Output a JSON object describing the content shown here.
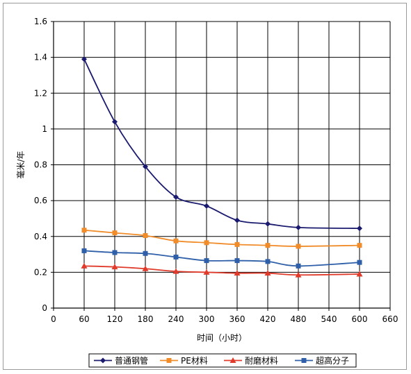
{
  "chart_data": {
    "type": "line",
    "title": "",
    "xlabel": "时间（小时）",
    "ylabel": "毫米/年",
    "xlim": [
      0,
      660
    ],
    "ylim": [
      0,
      1.6
    ],
    "xticks": [
      0,
      60,
      120,
      180,
      240,
      300,
      360,
      420,
      480,
      540,
      600,
      660
    ],
    "xtick_labels": [
      "0",
      "60",
      "120",
      "180",
      "240",
      "300",
      "360",
      "420",
      "480",
      "540",
      "600",
      "660"
    ],
    "yticks": [
      0,
      0.2,
      0.4,
      0.6,
      0.8,
      1.0,
      1.2,
      1.4,
      1.6
    ],
    "ytick_labels": [
      "0",
      "0.2",
      "0.4",
      "0.6",
      "0.8",
      "1",
      "1.2",
      "1.4",
      "1.6"
    ],
    "grid": true,
    "legend_position": "bottom",
    "x": [
      60,
      120,
      180,
      240,
      300,
      360,
      420,
      480,
      600
    ],
    "series": [
      {
        "name": "普通钢管",
        "color": "#1a1a6e",
        "marker": "diamond",
        "values": [
          1.39,
          1.04,
          0.79,
          0.62,
          0.57,
          0.49,
          0.47,
          0.45,
          0.445
        ]
      },
      {
        "name": "PE材料",
        "color": "#f08c2a",
        "marker": "square",
        "values": [
          0.435,
          0.42,
          0.405,
          0.375,
          0.365,
          0.355,
          0.35,
          0.345,
          0.35
        ]
      },
      {
        "name": "耐磨材料",
        "color": "#e03a2a",
        "marker": "triangle",
        "values": [
          0.235,
          0.23,
          0.22,
          0.205,
          0.2,
          0.195,
          0.195,
          0.185,
          0.19
        ]
      },
      {
        "name": "超高分子",
        "color": "#2e5fa8",
        "marker": "square",
        "values": [
          0.32,
          0.31,
          0.305,
          0.285,
          0.265,
          0.265,
          0.26,
          0.235,
          0.255
        ]
      }
    ]
  }
}
